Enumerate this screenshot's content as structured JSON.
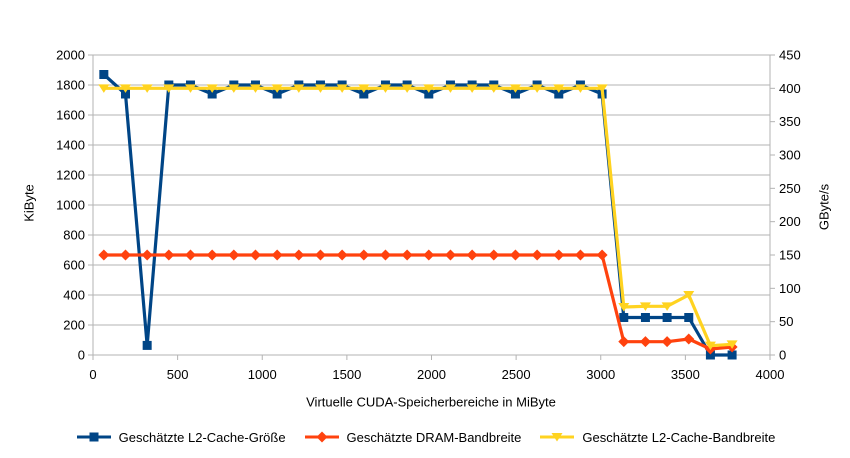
{
  "figure": {
    "background": "#FFFFFF",
    "grid_color": "#B3B3B3",
    "axis_color": "#B3B3B3",
    "text_color": "#000000"
  },
  "chart_data": {
    "type": "line",
    "title": "",
    "xlabel": "Virtuelle CUDA-Speicherbereiche in MiByte",
    "ylabel_left": "KiByte",
    "ylabel_right": "GByte/s",
    "xlim": [
      0,
      4000
    ],
    "ylim_left": [
      0,
      2000
    ],
    "ylim_right": [
      0,
      450
    ],
    "x_ticks": [
      0,
      500,
      1000,
      1500,
      2000,
      2500,
      3000,
      3500,
      4000
    ],
    "y_ticks_left": [
      0,
      200,
      400,
      600,
      800,
      1000,
      1200,
      1400,
      1600,
      1800,
      2000
    ],
    "y_ticks_right": [
      0,
      50,
      100,
      150,
      200,
      250,
      300,
      350,
      400,
      450
    ],
    "grid": "horizontal",
    "legend_position": "bottom",
    "x": [
      64,
      192,
      320,
      448,
      576,
      704,
      832,
      960,
      1088,
      1216,
      1344,
      1472,
      1600,
      1728,
      1856,
      1984,
      2112,
      2240,
      2368,
      2496,
      2624,
      2752,
      2880,
      3008,
      3136,
      3264,
      3392,
      3520,
      3648,
      3776
    ],
    "series": [
      {
        "name": "Geschätzte L2-Cache-Größe",
        "axis": "left",
        "color": "#004586",
        "marker": "square",
        "values": [
          1870,
          1740,
          64,
          1800,
          1800,
          1740,
          1800,
          1800,
          1740,
          1800,
          1800,
          1800,
          1740,
          1800,
          1800,
          1740,
          1800,
          1800,
          1800,
          1740,
          1800,
          1740,
          1800,
          1740,
          250,
          250,
          250,
          250,
          0,
          0
        ]
      },
      {
        "name": "Geschätzte DRAM-Bandbreite",
        "axis": "right",
        "color": "#FF420E",
        "marker": "diamond",
        "values": [
          150,
          150,
          150,
          150,
          150,
          150,
          150,
          150,
          150,
          150,
          150,
          150,
          150,
          150,
          150,
          150,
          150,
          150,
          150,
          150,
          150,
          150,
          150,
          150,
          20,
          20,
          20,
          24,
          9,
          12
        ]
      },
      {
        "name": "Geschätzte L2-Cache-Bandbreite",
        "axis": "right",
        "color": "#FFD320",
        "marker": "triangle-down",
        "values": [
          400,
          400,
          400,
          400,
          400,
          400,
          400,
          400,
          400,
          400,
          400,
          400,
          400,
          400,
          400,
          400,
          400,
          400,
          400,
          400,
          400,
          400,
          400,
          400,
          72,
          73,
          73,
          90,
          14,
          16
        ]
      }
    ]
  }
}
